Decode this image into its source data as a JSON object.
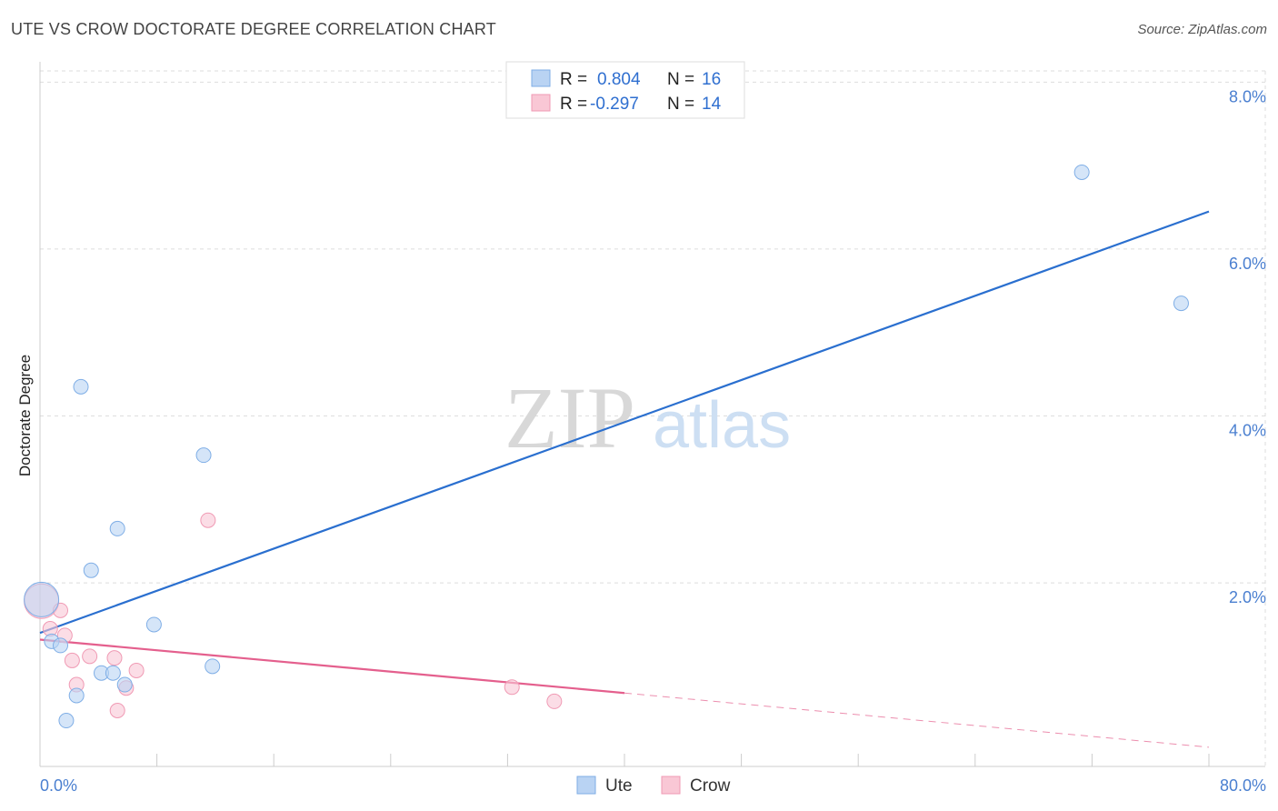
{
  "title": "UTE VS CROW DOCTORATE DEGREE CORRELATION CHART",
  "source": "Source: ZipAtlas.com",
  "watermark": {
    "zip": "ZIP",
    "atlas": "atlas"
  },
  "colors": {
    "ute_fill": "#b9d3f3",
    "ute_stroke": "#7faee6",
    "ute_line": "#2a6fcf",
    "crow_fill": "#f9c7d5",
    "crow_stroke": "#f09ab4",
    "crow_line": "#e45f8d",
    "grid": "#dddddd",
    "tick_text": "#4a7fd0"
  },
  "legend": {
    "rows": [
      {
        "r_label": "R =",
        "r_value": "0.804",
        "n_label": "N =",
        "n_value": "16"
      },
      {
        "r_label": "R =",
        "r_value": "-0.297",
        "n_label": "N =",
        "n_value": "14"
      }
    ]
  },
  "bottom_legend": [
    "Ute",
    "Crow"
  ],
  "chart_data": {
    "type": "scatter",
    "title": "UTE VS CROW DOCTORATE DEGREE CORRELATION CHART",
    "xlabel": "",
    "ylabel": "Doctorate Degree",
    "xlim": [
      0,
      80
    ],
    "ylim": [
      -0.2,
      8.2
    ],
    "x_tick_labels": [
      {
        "value": 0,
        "label": "0.0%"
      },
      {
        "value": 80,
        "label": "80.0%"
      }
    ],
    "y_tick_labels": [
      {
        "value": 2,
        "label": "2.0%"
      },
      {
        "value": 4,
        "label": "4.0%"
      },
      {
        "value": 6,
        "label": "6.0%"
      },
      {
        "value": 8,
        "label": "8.0%"
      }
    ],
    "series": [
      {
        "name": "Ute",
        "points": [
          [
            0.1,
            1.8
          ],
          [
            0.8,
            1.3
          ],
          [
            1.4,
            1.25
          ],
          [
            1.8,
            0.35
          ],
          [
            2.5,
            0.65
          ],
          [
            2.8,
            4.35
          ],
          [
            3.5,
            2.15
          ],
          [
            4.2,
            0.92
          ],
          [
            5.0,
            0.92
          ],
          [
            5.3,
            2.65
          ],
          [
            5.8,
            0.78
          ],
          [
            7.8,
            1.5
          ],
          [
            11.2,
            3.53
          ],
          [
            11.8,
            1.0
          ],
          [
            71.3,
            6.92
          ],
          [
            78.1,
            5.35
          ]
        ],
        "trend": {
          "x": [
            0,
            80
          ],
          "y": [
            1.4,
            6.45
          ]
        }
      },
      {
        "name": "Crow",
        "points": [
          [
            0.1,
            1.78
          ],
          [
            0.7,
            1.45
          ],
          [
            1.4,
            1.67
          ],
          [
            1.7,
            1.37
          ],
          [
            2.2,
            1.07
          ],
          [
            2.5,
            0.78
          ],
          [
            3.4,
            1.12
          ],
          [
            5.1,
            1.1
          ],
          [
            5.3,
            0.47
          ],
          [
            5.9,
            0.74
          ],
          [
            6.6,
            0.95
          ],
          [
            11.5,
            2.75
          ],
          [
            32.3,
            0.75
          ],
          [
            35.2,
            0.58
          ]
        ],
        "trend": {
          "x": [
            0,
            40
          ],
          "y": [
            1.32,
            0.68
          ]
        },
        "trend_extension": {
          "x": [
            40,
            80
          ],
          "y": [
            0.68,
            0.03
          ]
        }
      }
    ]
  }
}
